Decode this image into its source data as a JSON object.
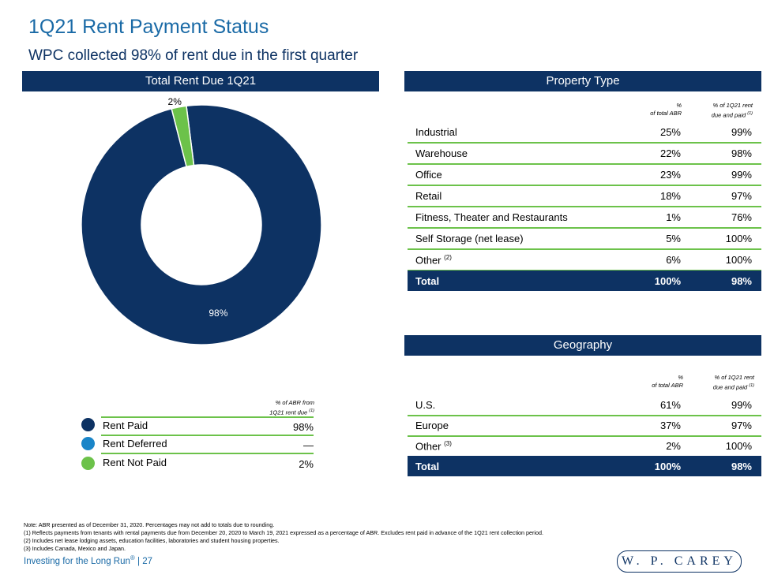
{
  "title": "1Q21 Rent Payment Status",
  "subtitle": "WPC collected 98% of rent due in the first quarter",
  "left_panel": {
    "header": "Total Rent Due 1Q21",
    "legend_col_header_line1": "% of ABR from",
    "legend_col_header_line2": "1Q21 rent due",
    "legend_col_header_sup": "(1)",
    "legend": [
      {
        "label": "Rent Paid",
        "value": "98%",
        "color": "#0d3263"
      },
      {
        "label": "Rent Deferred",
        "value": "—",
        "color": "#1a85c8"
      },
      {
        "label": "Rent Not Paid",
        "value": "2%",
        "color": "#6cc24a"
      }
    ]
  },
  "chart_data": {
    "type": "pie",
    "title": "Total Rent Due 1Q21",
    "labels": [
      "Rent Paid",
      "Rent Not Paid"
    ],
    "values": [
      98,
      2
    ],
    "data_labels": [
      "98%",
      "2%"
    ],
    "colors": [
      "#0d3263",
      "#6cc24a"
    ],
    "donut": true
  },
  "property_type": {
    "header": "Property Type",
    "col1_line1": "%",
    "col1_line2": "of total ABR",
    "col2_line1": "% of 1Q21 rent",
    "col2_line2": "due and paid",
    "col2_sup": "(1)",
    "rows": [
      {
        "label": "Industrial",
        "sup": "",
        "abr": "25%",
        "paid": "99%"
      },
      {
        "label": "Warehouse",
        "sup": "",
        "abr": "22%",
        "paid": "98%"
      },
      {
        "label": "Office",
        "sup": "",
        "abr": "23%",
        "paid": "99%"
      },
      {
        "label": "Retail",
        "sup": "",
        "abr": "18%",
        "paid": "97%"
      },
      {
        "label": "Fitness, Theater and Restaurants",
        "sup": "",
        "abr": "1%",
        "paid": "76%"
      },
      {
        "label": "Self Storage (net lease)",
        "sup": "",
        "abr": "5%",
        "paid": "100%"
      },
      {
        "label": "Other",
        "sup": "(2)",
        "abr": "6%",
        "paid": "100%"
      }
    ],
    "total": {
      "label": "Total",
      "abr": "100%",
      "paid": "98%"
    }
  },
  "geography": {
    "header": "Geography",
    "col1_line1": "%",
    "col1_line2": "of total ABR",
    "col2_line1": "% of 1Q21 rent",
    "col2_line2": "due and paid",
    "col2_sup": "(1)",
    "rows": [
      {
        "label": "U.S.",
        "sup": "",
        "abr": "61%",
        "paid": "99%"
      },
      {
        "label": "Europe",
        "sup": "",
        "abr": "37%",
        "paid": "97%"
      },
      {
        "label": "Other",
        "sup": "(3)",
        "abr": "2%",
        "paid": "100%"
      }
    ],
    "total": {
      "label": "Total",
      "abr": "100%",
      "paid": "98%"
    }
  },
  "notes": [
    "Note: ABR presented as of December 31, 2020. Percentages may not add to totals due to rounding.",
    "(1) Reflects payments from tenants with rental payments due from December 20, 2020 to March 19, 2021 expressed as a percentage of ABR. Excludes rent paid in advance of the 1Q21 rent collection period.",
    "(2) Includes net lease lodging assets, education facilities, laboratories and student housing properties.",
    "(3) Includes Canada, Mexico and Japan."
  ],
  "footer": {
    "text": "Investing for the Long Run",
    "reg": "®",
    "page": " | 27"
  },
  "logo": "W. P. CAREY"
}
